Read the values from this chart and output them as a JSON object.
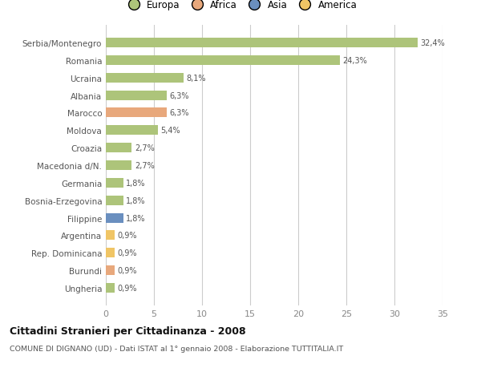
{
  "countries": [
    "Serbia/Montenegro",
    "Romania",
    "Ucraina",
    "Albania",
    "Marocco",
    "Moldova",
    "Croazia",
    "Macedonia d/N.",
    "Germania",
    "Bosnia-Erzegovina",
    "Filippine",
    "Argentina",
    "Rep. Dominicana",
    "Burundi",
    "Ungheria"
  ],
  "values": [
    32.4,
    24.3,
    8.1,
    6.3,
    6.3,
    5.4,
    2.7,
    2.7,
    1.8,
    1.8,
    1.8,
    0.9,
    0.9,
    0.9,
    0.9
  ],
  "labels": [
    "32,4%",
    "24,3%",
    "8,1%",
    "6,3%",
    "6,3%",
    "5,4%",
    "2,7%",
    "2,7%",
    "1,8%",
    "1,8%",
    "1,8%",
    "0,9%",
    "0,9%",
    "0,9%",
    "0,9%"
  ],
  "colors": [
    "#adc47a",
    "#adc47a",
    "#adc47a",
    "#adc47a",
    "#e8a87c",
    "#adc47a",
    "#adc47a",
    "#adc47a",
    "#adc47a",
    "#adc47a",
    "#6a8fbf",
    "#f0c565",
    "#f0c565",
    "#e8a87c",
    "#adc47a"
  ],
  "continents": [
    "Europa",
    "Africa",
    "Asia",
    "America"
  ],
  "legend_colors": [
    "#adc47a",
    "#e8a87c",
    "#6a8fbf",
    "#f0c565"
  ],
  "title": "Cittadini Stranieri per Cittadinanza - 2008",
  "subtitle": "COMUNE DI DIGNANO (UD) - Dati ISTAT al 1° gennaio 2008 - Elaborazione TUTTITALIA.IT",
  "xlim": [
    0,
    35
  ],
  "xticks": [
    0,
    5,
    10,
    15,
    20,
    25,
    30,
    35
  ],
  "bg_color": "#ffffff",
  "grid_color": "#cccccc",
  "bar_height": 0.55
}
